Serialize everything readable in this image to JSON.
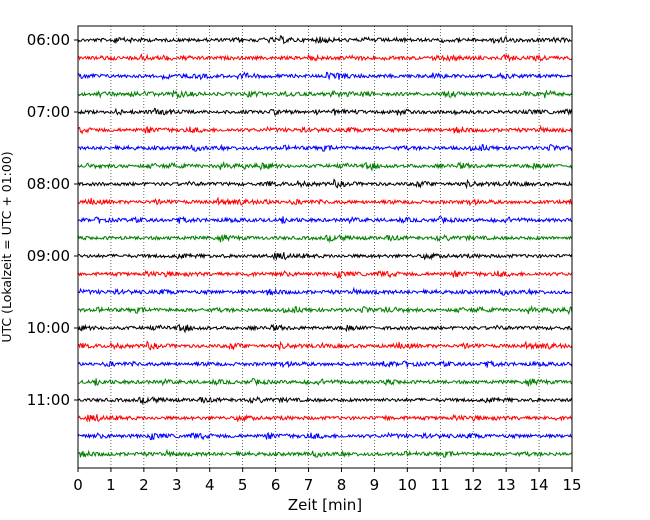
{
  "chart_data": {
    "type": "line",
    "title": "",
    "xlabel": "Zeit  [min]",
    "ylabel": "UTC (Lokalzeit = UTC + 01:00)",
    "xlim": [
      0,
      15
    ],
    "x_ticks": [
      "0",
      "1",
      "2",
      "3",
      "4",
      "5",
      "6",
      "7",
      "8",
      "9",
      "10",
      "11",
      "12",
      "13",
      "14",
      "15"
    ],
    "y_tick_labels": [
      "06:00",
      "07:00",
      "08:00",
      "09:00",
      "10:00",
      "11:00"
    ],
    "start_time_utc": "06:00",
    "trace_interval_min": 15,
    "trace_count": 24,
    "trace_colors": [
      "#000000",
      "#ff0000",
      "#0000ff",
      "#008000"
    ],
    "grid_x": true,
    "grid_style": "dotted"
  }
}
